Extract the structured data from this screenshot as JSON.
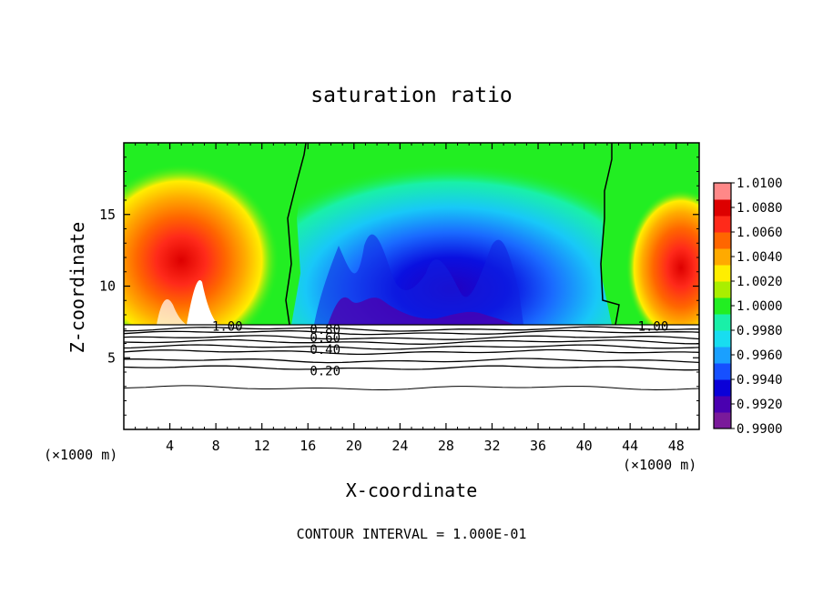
{
  "chart_data": {
    "type": "heatmap",
    "title": "saturation ratio",
    "xlabel": "X-coordinate",
    "ylabel": "Z-coordinate",
    "x_unit_left": "(×1000 m)",
    "x_unit_right": "(×1000 m)",
    "footer": "CONTOUR INTERVAL = 1.000E-01",
    "xlim": [
      0,
      50
    ],
    "ylim": [
      0,
      20
    ],
    "x_ticks": [
      4,
      8,
      12,
      16,
      20,
      24,
      28,
      32,
      36,
      40,
      44,
      48
    ],
    "y_ticks": [
      5,
      10,
      15
    ],
    "colorbar": {
      "min": 0.99,
      "max": 1.01,
      "labels": [
        "1.0100",
        "1.0080",
        "1.0060",
        "1.0040",
        "1.0020",
        "1.0000",
        "0.9980",
        "0.9960",
        "0.9940",
        "0.9920",
        "0.9900"
      ],
      "colors": [
        "#7a1a9a",
        "#4a00b0",
        "#0a00d8",
        "#1650ff",
        "#1aa0ff",
        "#18ddf0",
        "#19f0a8",
        "#22ee22",
        "#aaee00",
        "#ffee00",
        "#ffaa00",
        "#ff6600",
        "#ff2a1a",
        "#dd0000",
        "#ff8888"
      ]
    },
    "contour_labels": [
      {
        "text": "1.00",
        "x": 9.0,
        "z": 7.2
      },
      {
        "text": "1.00",
        "x": 46.0,
        "z": 7.2
      },
      {
        "text": "0.80",
        "x": 17.5,
        "z": 7.0
      },
      {
        "text": "0.60",
        "x": 17.5,
        "z": 6.4
      },
      {
        "text": "0.40",
        "x": 17.5,
        "z": 5.6
      },
      {
        "text": "0.20",
        "x": 17.5,
        "z": 4.1
      }
    ],
    "contour_levels": [
      {
        "level": 1.0,
        "z": 7.3
      },
      {
        "level": 0.9,
        "z": 7.0
      },
      {
        "level": 0.8,
        "z": 6.75
      },
      {
        "level": 0.7,
        "z": 6.4
      },
      {
        "level": 0.6,
        "z": 6.1
      },
      {
        "level": 0.5,
        "z": 5.75
      },
      {
        "level": 0.4,
        "z": 5.4
      },
      {
        "level": 0.3,
        "z": 4.8
      },
      {
        "level": 0.2,
        "z": 4.3
      },
      {
        "level": 0.1,
        "z": 2.9
      }
    ]
  }
}
